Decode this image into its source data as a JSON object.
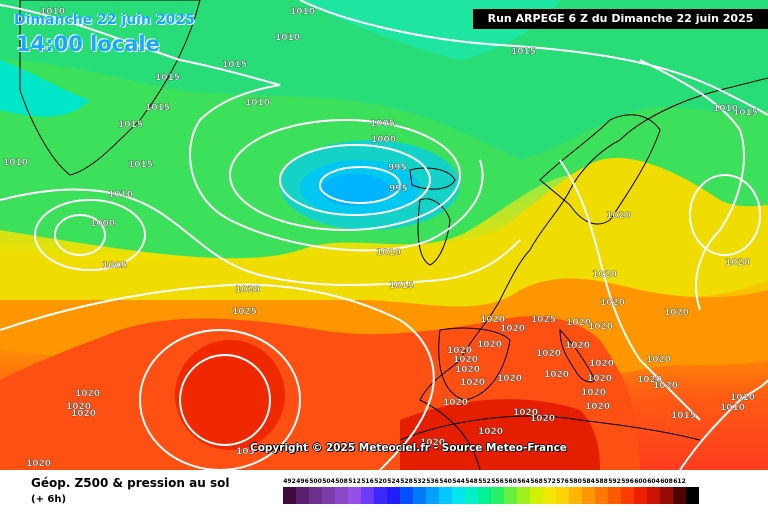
{
  "map": {
    "date": "Dimanche 22 juin 2025",
    "time": "14:00 locale",
    "run": "Run ARPEGE 6 Z du Dimanche 22 juin 2025",
    "copyright": "Copyright © 2025 Meteociel.fr - Source Meteo-France",
    "title": "Géop. Z500 & pression au sol",
    "offset": "(+ 6h)"
  },
  "pressure_labels": [
    "1010",
    "1010",
    "1010",
    "1015",
    "1015",
    "1015",
    "1015",
    "1010",
    "1015",
    "1010",
    "1000",
    "1005",
    "1020",
    "1025",
    "1005",
    "1000",
    "995",
    "995",
    "1010",
    "1015",
    "1015",
    "1010",
    "1015",
    "1020",
    "1020",
    "1010",
    "1020",
    "1020",
    "1020",
    "1020",
    "1025",
    "1020",
    "1020",
    "1020",
    "1020",
    "1020",
    "1020",
    "1020",
    "1020",
    "1020",
    "1020",
    "1020",
    "1020",
    "1020",
    "1020",
    "1020",
    "1020",
    "1020",
    "1020",
    "1020",
    "1020",
    "1020",
    "1020",
    "1020",
    "1015",
    "1010",
    "1010",
    "1020",
    "1020",
    "1020",
    "1020",
    "1020",
    "103"
  ],
  "scale": {
    "labels": [
      "492",
      "496",
      "500",
      "504",
      "508",
      "512",
      "516",
      "520",
      "524",
      "528",
      "532",
      "536",
      "540",
      "544",
      "548",
      "552",
      "556",
      "560",
      "564",
      "568",
      "572",
      "576",
      "580",
      "584",
      "588",
      "592",
      "596",
      "600",
      "604",
      "608",
      "612"
    ],
    "colors": [
      "#400a3c",
      "#5a1e6e",
      "#6e2e8c",
      "#7a3caa",
      "#8c46c8",
      "#9650e6",
      "#6e3cff",
      "#3c28ff",
      "#1e1eff",
      "#0050ff",
      "#0078ff",
      "#00a0ff",
      "#00c8ff",
      "#00e6f0",
      "#00f0c8",
      "#00f096",
      "#28f064",
      "#64f03c",
      "#a0f01e",
      "#d2f000",
      "#f0e600",
      "#ffd200",
      "#ffb400",
      "#ff9600",
      "#ff7800",
      "#ff5a00",
      "#ff3c00",
      "#f01e00",
      "#c81400",
      "#960a00",
      "#500000",
      "#000000"
    ]
  }
}
